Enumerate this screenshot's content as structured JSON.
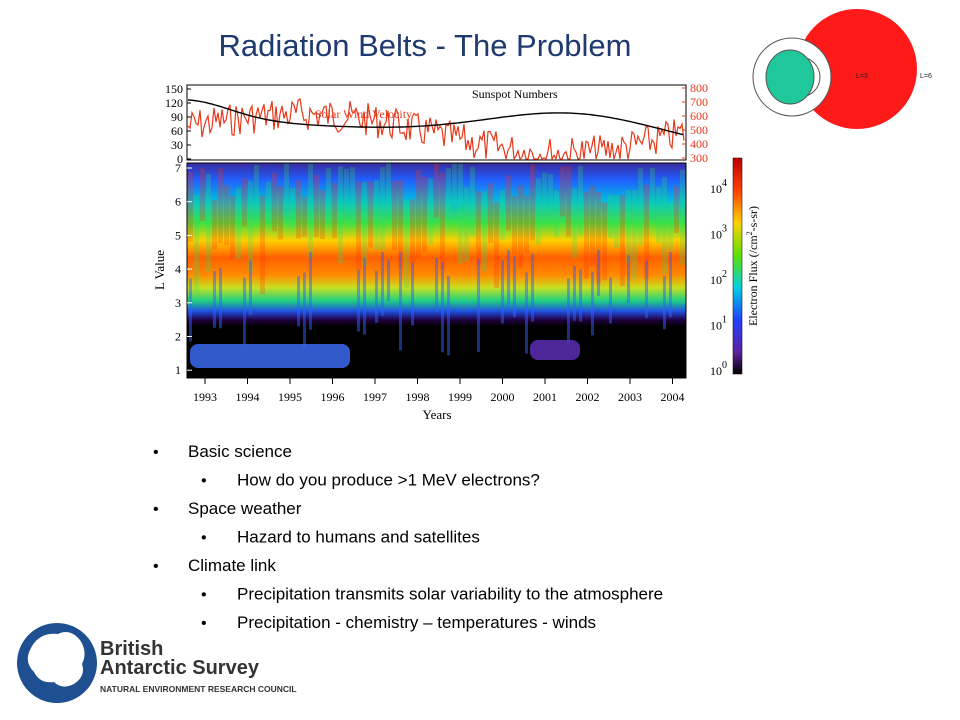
{
  "title": "Radiation Belts - The Problem",
  "figure": {
    "top_panel": {
      "left_ticks": [
        "150",
        "120",
        "90",
        "60",
        "30",
        "0"
      ],
      "right_ticks": [
        "800",
        "700",
        "600",
        "500",
        "400",
        "300"
      ],
      "sunspot_label": "Sunspot Numbers",
      "wind_label": "Solar Wind Velocity"
    },
    "main_panel": {
      "y_label": "L Value",
      "y_ticks": [
        "7",
        "6",
        "5",
        "4",
        "3",
        "2",
        "1"
      ],
      "x_label": "Years",
      "x_ticks": [
        "1993",
        "1994",
        "1995",
        "1996",
        "1997",
        "1998",
        "1999",
        "2000",
        "2001",
        "2002",
        "2003",
        "2004"
      ]
    },
    "colorbar": {
      "label": {
        "text": "Electron Flux (/cm",
        "sup": "2",
        "rest": "-s-sr)"
      },
      "ticks": [
        {
          "base": "10",
          "exp": "4"
        },
        {
          "base": "10",
          "exp": "3"
        },
        {
          "base": "10",
          "exp": "2"
        },
        {
          "base": "10",
          "exp": "1"
        },
        {
          "base": "10",
          "exp": "0"
        }
      ]
    }
  },
  "diagram": {
    "inner_label": "L=3",
    "outer_label": "L=6"
  },
  "bullets": [
    {
      "text": "Basic science",
      "sub": [
        "How do you produce >1 MeV electrons?"
      ]
    },
    {
      "text": "Space weather",
      "sub": [
        "Hazard to humans and satellites"
      ]
    },
    {
      "text": "Climate link",
      "sub": [
        "Precipitation transmits solar variability to the atmosphere",
        "Precipitation - chemistry – temperatures - winds"
      ]
    }
  ],
  "logo": {
    "line1": "British",
    "line2": "Antarctic Survey",
    "tagline": "NATURAL ENVIRONMENT RESEARCH COUNCIL"
  }
}
